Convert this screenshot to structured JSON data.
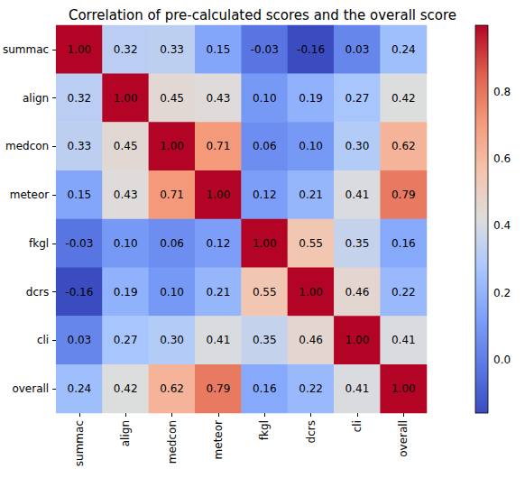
{
  "chart_data": {
    "type": "heatmap",
    "title": "Correlation of pre-calculated scores and the overall score",
    "categories": [
      "summac",
      "align",
      "medcon",
      "meteor",
      "fkgl",
      "dcrs",
      "cli",
      "overall"
    ],
    "values": [
      [
        1.0,
        0.32,
        0.33,
        0.15,
        -0.03,
        -0.16,
        0.03,
        0.24
      ],
      [
        0.32,
        1.0,
        0.45,
        0.43,
        0.1,
        0.19,
        0.27,
        0.42
      ],
      [
        0.33,
        0.45,
        1.0,
        0.71,
        0.06,
        0.1,
        0.3,
        0.62
      ],
      [
        0.15,
        0.43,
        0.71,
        1.0,
        0.12,
        0.21,
        0.41,
        0.79
      ],
      [
        -0.03,
        0.1,
        0.06,
        0.12,
        1.0,
        0.55,
        0.35,
        0.16
      ],
      [
        -0.16,
        0.19,
        0.1,
        0.21,
        0.55,
        1.0,
        0.46,
        0.22
      ],
      [
        0.03,
        0.27,
        0.3,
        0.41,
        0.35,
        0.46,
        1.0,
        0.41
      ],
      [
        0.24,
        0.42,
        0.62,
        0.79,
        0.16,
        0.22,
        0.41,
        1.0
      ]
    ],
    "value_labels": [
      [
        "1.00",
        "0.32",
        "0.33",
        "0.15",
        "-0.03",
        "-0.16",
        "0.03",
        "0.24"
      ],
      [
        "0.32",
        "1.00",
        "0.45",
        "0.43",
        "0.10",
        "0.19",
        "0.27",
        "0.42"
      ],
      [
        "0.33",
        "0.45",
        "1.00",
        "0.71",
        "0.06",
        "0.10",
        "0.30",
        "0.62"
      ],
      [
        "0.15",
        "0.43",
        "0.71",
        "1.00",
        "0.12",
        "0.21",
        "0.41",
        "0.79"
      ],
      [
        "-0.03",
        "0.10",
        "0.06",
        "0.12",
        "1.00",
        "0.55",
        "0.35",
        "0.16"
      ],
      [
        "-0.16",
        "0.19",
        "0.10",
        "0.21",
        "0.55",
        "1.00",
        "0.46",
        "0.22"
      ],
      [
        "0.03",
        "0.27",
        "0.30",
        "0.41",
        "0.35",
        "0.46",
        "1.00",
        "0.41"
      ],
      [
        "0.24",
        "0.42",
        "0.62",
        "0.79",
        "0.16",
        "0.22",
        "0.41",
        "1.00"
      ]
    ],
    "data_labels": true,
    "colorbar": {
      "range": [
        -0.16,
        1.0
      ],
      "ticks": [
        {
          "value": 0,
          "label": "0.0"
        },
        0.2,
        0.4,
        0.6,
        0.8
      ],
      "colors": [
        "#3b4cc0",
        "#5b7ae5",
        "#7ea1fa",
        "#aac7fd",
        "#dcdddd",
        "#f5c4ad",
        "#f49a7b",
        "#de604d",
        "#b40426"
      ]
    }
  }
}
